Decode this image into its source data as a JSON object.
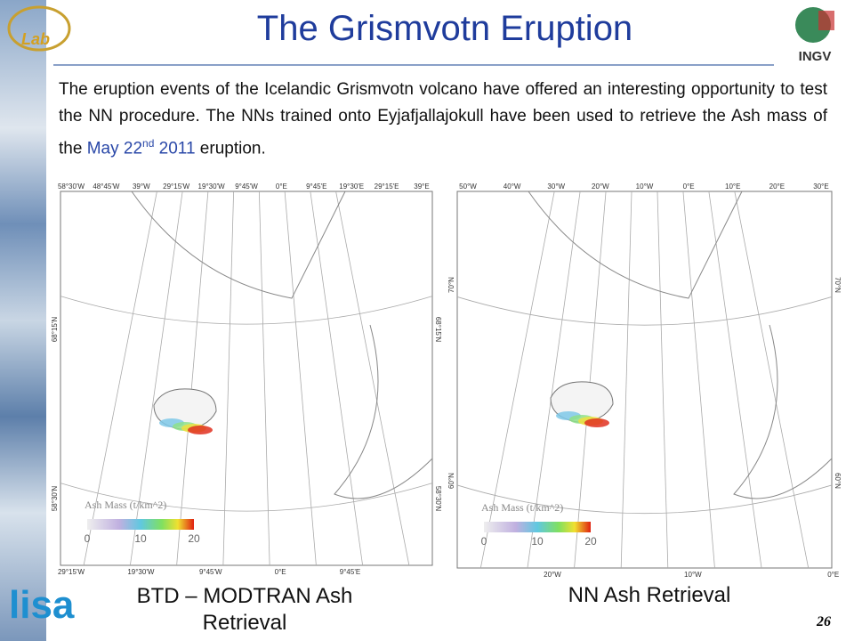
{
  "header": {
    "title": "The Grismvotn Eruption",
    "logo_left": "Lab",
    "logo_right": "INGV"
  },
  "paragraph": {
    "text": "The eruption events of the Icelandic Grismvotn volcano have offered an interesting opportunity to test the NN procedure. The NNs trained onto Eyjafjallajokull have been used to retrieve the Ash mass of the",
    "date": "May 22",
    "date_sup": "nd",
    "year": "2011",
    "end": "eruption."
  },
  "maps": [
    {
      "top_labels": [
        "58°30'W",
        "48°45'W",
        "39°W",
        "29°15'W",
        "19°30'W",
        "9°45'W",
        "0°E",
        "9°45'E",
        "19°30'E",
        "29°15'E",
        "39°E"
      ],
      "left_labels": [
        "68°15'N",
        "58°30'N"
      ],
      "right_labels": [
        "68°15'N",
        "58°30'N"
      ],
      "bottom_labels": [
        "29°15'W",
        "19°30'W",
        "9°45'W",
        "0°E",
        "9°45'E"
      ],
      "legend_title": "Ash Mass (t/km^2)",
      "legend_ticks": [
        "0",
        "10",
        "20"
      ],
      "caption": "BTD – MODTRAN Ash Retrieval"
    },
    {
      "top_labels": [
        "50°W",
        "40°W",
        "30°W",
        "20°W",
        "10°W",
        "0°E",
        "10°E",
        "20°E",
        "30°E"
      ],
      "left_labels": [
        "70°N",
        "60°N"
      ],
      "right_labels": [
        "70°N",
        "60°N"
      ],
      "bottom_labels": [
        "20°W",
        "10°W",
        "0°E"
      ],
      "legend_title": "Ash Mass (t/km^2)",
      "legend_ticks": [
        "0",
        "10",
        "20"
      ],
      "caption": "NN Ash Retrieval"
    }
  ],
  "footer": {
    "logo": "lisa",
    "page": "26"
  }
}
